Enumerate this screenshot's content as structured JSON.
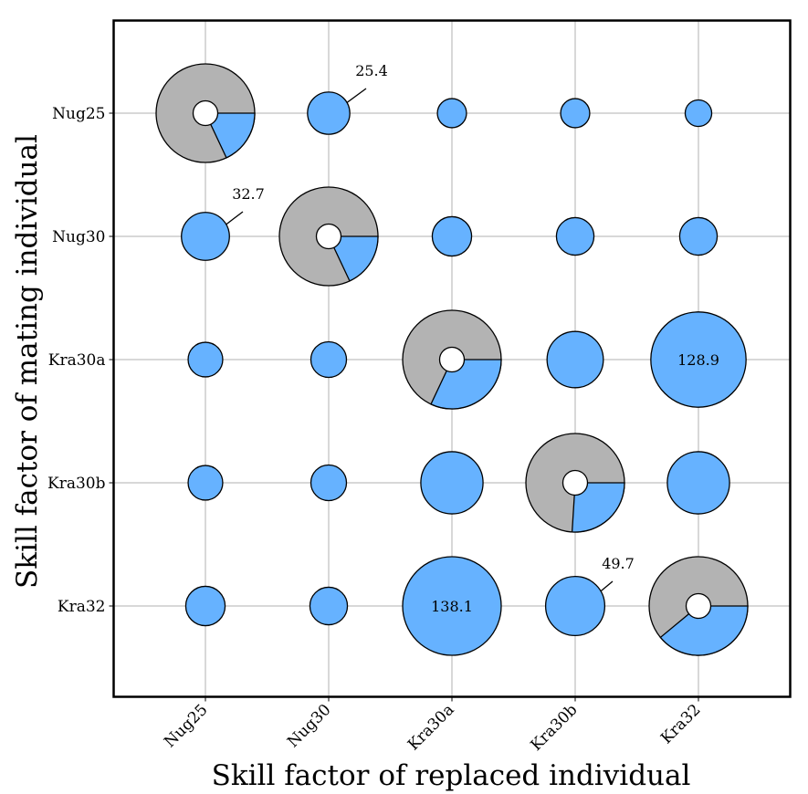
{
  "chart_data": {
    "type": "bubble-pie-matrix",
    "xlabel": "Skill factor of replaced individual",
    "ylabel": "Skill factor of mating individual",
    "x_categories": [
      "Nug25",
      "Nug30",
      "Kra30a",
      "Kra30b",
      "Kra32"
    ],
    "y_categories": [
      "Nug25",
      "Nug30",
      "Kra30a",
      "Kra30b",
      "Kra32"
    ],
    "grid": true,
    "colors": {
      "bubble": "#66b2ff",
      "pie_remainder": "#b3b3b3",
      "hole": "#ffffff",
      "edge": "#000000"
    },
    "size_max": 138.1,
    "offdiagonal": [
      {
        "replaced": "Nug30",
        "mating": "Nug25",
        "value": 25.4
      },
      {
        "replaced": "Kra30a",
        "mating": "Nug25",
        "value": 12
      },
      {
        "replaced": "Kra30b",
        "mating": "Nug25",
        "value": 12
      },
      {
        "replaced": "Kra32",
        "mating": "Nug25",
        "value": 10
      },
      {
        "replaced": "Nug25",
        "mating": "Nug30",
        "value": 32.7
      },
      {
        "replaced": "Kra30a",
        "mating": "Nug30",
        "value": 22
      },
      {
        "replaced": "Kra30b",
        "mating": "Nug30",
        "value": 20
      },
      {
        "replaced": "Kra32",
        "mating": "Nug30",
        "value": 20
      },
      {
        "replaced": "Nug25",
        "mating": "Kra30a",
        "value": 17
      },
      {
        "replaced": "Nug30",
        "mating": "Kra30a",
        "value": 18
      },
      {
        "replaced": "Kra30b",
        "mating": "Kra30a",
        "value": 45
      },
      {
        "replaced": "Kra32",
        "mating": "Kra30a",
        "value": 128.9
      },
      {
        "replaced": "Nug25",
        "mating": "Kra30b",
        "value": 17
      },
      {
        "replaced": "Nug30",
        "mating": "Kra30b",
        "value": 18
      },
      {
        "replaced": "Kra30a",
        "mating": "Kra30b",
        "value": 55
      },
      {
        "replaced": "Kra32",
        "mating": "Kra30b",
        "value": 55
      },
      {
        "replaced": "Nug25",
        "mating": "Kra32",
        "value": 22
      },
      {
        "replaced": "Nug30",
        "mating": "Kra32",
        "value": 20
      },
      {
        "replaced": "Kra30a",
        "mating": "Kra32",
        "value": 138.1
      },
      {
        "replaced": "Kra30b",
        "mating": "Kra32",
        "value": 49.7
      }
    ],
    "labeled_values": [
      {
        "replaced": "Nug30",
        "mating": "Nug25",
        "label": "25.4",
        "style": "leader"
      },
      {
        "replaced": "Nug25",
        "mating": "Nug30",
        "label": "32.7",
        "style": "leader"
      },
      {
        "replaced": "Kra32",
        "mating": "Kra30a",
        "label": "128.9",
        "style": "inside"
      },
      {
        "replaced": "Kra30a",
        "mating": "Kra32",
        "label": "138.1",
        "style": "inside"
      },
      {
        "replaced": "Kra30b",
        "mating": "Kra32",
        "label": "49.7",
        "style": "leader"
      }
    ],
    "diagonal_pies": [
      {
        "category": "Nug25",
        "fraction": 0.18
      },
      {
        "category": "Nug30",
        "fraction": 0.18
      },
      {
        "category": "Kra30a",
        "fraction": 0.32
      },
      {
        "category": "Kra30b",
        "fraction": 0.26
      },
      {
        "category": "Kra32",
        "fraction": 0.39
      }
    ]
  }
}
